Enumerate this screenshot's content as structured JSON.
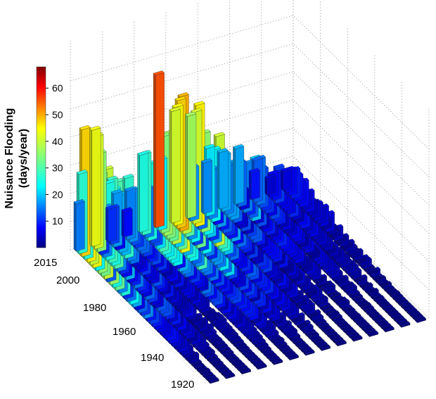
{
  "chart_data": {
    "type": "3d-bar",
    "colorbar": {
      "label_line1": "Nuisance Flooding",
      "label_line2": "(days/year)",
      "ticks": [
        10,
        20,
        30,
        40,
        50,
        60
      ],
      "range": [
        0,
        68
      ],
      "colormap": "jet"
    },
    "year_axis": {
      "ticks": [
        2015,
        2000,
        1980,
        1960,
        1940,
        1920
      ],
      "range": [
        1920,
        2015
      ]
    },
    "z_range": [
      0,
      68
    ],
    "grid": true
  }
}
